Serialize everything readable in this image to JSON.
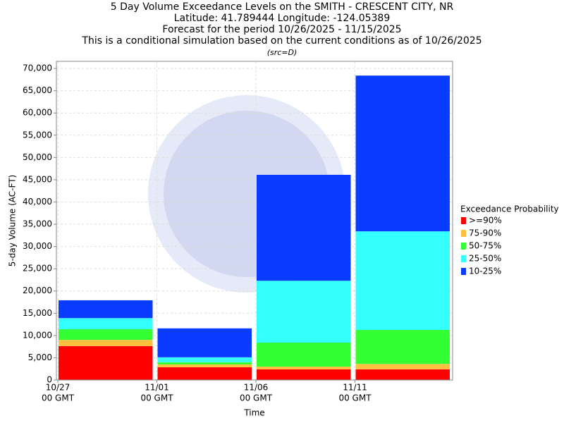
{
  "chart_data": {
    "type": "stacked_bar",
    "title": "5 Day Volume Exceedance Levels on the SMITH - CRESCENT CITY, NR",
    "subtitle_lines": [
      "Latitude: 41.789444 Longitude: -124.05389",
      "Forecast for the period 10/26/2025 - 11/15/2025",
      "This is a conditional simulation based on the current conditions as of 10/26/2025"
    ],
    "source": "(src=D)",
    "x_label": "Time",
    "y_label": "5-day Volume (AC-FT)",
    "categories": [
      "10/27",
      "11/01",
      "11/06",
      "11/11"
    ],
    "x_tick_sublabels": [
      "00 GMT",
      "00 GMT",
      "00 GMT",
      "00 GMT"
    ],
    "legend_title": "Exceedance Probability",
    "series": [
      {
        "name": ">=90%",
        "color": "#ff0000",
        "values": [
          7600,
          2850,
          2400,
          2400
        ]
      },
      {
        "name": "75-90%",
        "color": "#ffc040",
        "values": [
          1400,
          650,
          600,
          1200
        ]
      },
      {
        "name": "50-75%",
        "color": "#33ff33",
        "values": [
          2400,
          500,
          5400,
          7650
        ]
      },
      {
        "name": "25-50%",
        "color": "#33ffff",
        "values": [
          2500,
          1100,
          13900,
          22150
        ]
      },
      {
        "name": "10-25%",
        "color": "#0a3cff",
        "values": [
          4000,
          6500,
          23800,
          35000
        ]
      }
    ],
    "ylim": [
      0,
      71600
    ],
    "yticks": [
      0,
      {
        "value": 5000,
        "label": "5,000"
      },
      {
        "value": 10000,
        "label": "10,000"
      },
      {
        "value": 15000,
        "label": "15,000"
      },
      {
        "value": 20000,
        "label": "20,000"
      },
      {
        "value": 25000,
        "label": "25,000"
      },
      {
        "value": 30000,
        "label": "30,000"
      },
      {
        "value": 35000,
        "label": "35,000"
      },
      {
        "value": 40000,
        "label": "40,000"
      },
      {
        "value": 45000,
        "label": "45,000"
      },
      {
        "value": 50000,
        "label": "50,000"
      },
      {
        "value": 55000,
        "label": "55,000"
      },
      {
        "value": 60000,
        "label": "60,000"
      },
      {
        "value": 65000,
        "label": "65,000"
      },
      {
        "value": 70000,
        "label": "70,000"
      }
    ],
    "grid": true
  }
}
